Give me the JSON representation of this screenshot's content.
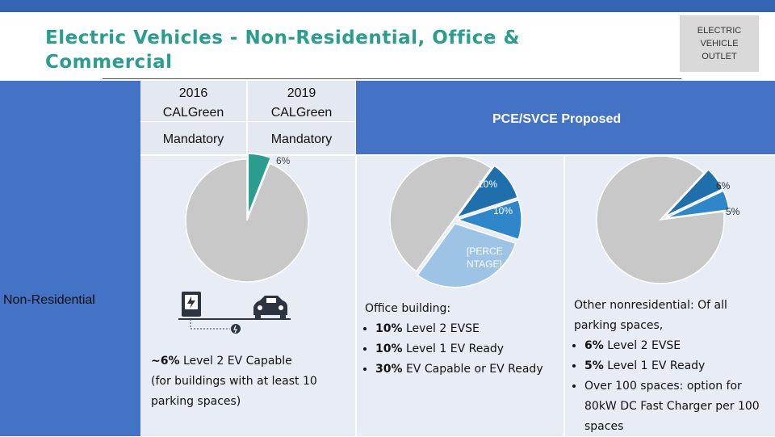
{
  "title": {
    "line1": "Electric Vehicles - Non-Residential, Office &",
    "line2": "Commercial"
  },
  "outlet_label": [
    "ELECTRIC",
    "VEHICLE",
    "OUTLET"
  ],
  "table": {
    "col2016": {
      "year": "2016",
      "code": "CALGreen",
      "status": "Mandatory"
    },
    "col2019": {
      "year": "2019",
      "code": "CALGreen",
      "status": "Mandatory"
    },
    "proposed": "PCE/SVCE Proposed",
    "row_label": "Non-Residential"
  },
  "colors": {
    "accent_blue": "#4472c4",
    "teal": "#2a9d8f",
    "grey": "#c8c8c8",
    "dark_blue": "#1f6fad",
    "light_blue": "#9dc3e6"
  },
  "chart_data": [
    {
      "type": "pie",
      "title": "",
      "slices": [
        {
          "label": "6%",
          "value": 6,
          "color": "#2a9d8f"
        },
        {
          "label": "",
          "value": 94,
          "color": "#c8c8c8"
        }
      ]
    },
    {
      "type": "pie",
      "title": "",
      "slices": [
        {
          "label": "10%",
          "value": 10,
          "color": "#1f6fad"
        },
        {
          "label": "10%",
          "value": 10,
          "color": "#2f86c8"
        },
        {
          "label": "[PERCENTAGE]",
          "value": 30,
          "color": "#9dc3e6"
        },
        {
          "label": "",
          "value": 50,
          "color": "#c8c8c8"
        }
      ]
    },
    {
      "type": "pie",
      "title": "",
      "slices": [
        {
          "label": "6%",
          "value": 6,
          "color": "#1f6fad"
        },
        {
          "label": "5%",
          "value": 5,
          "color": "#2f86c8"
        },
        {
          "label": "",
          "value": 89,
          "color": "#c8c8c8"
        }
      ]
    }
  ],
  "pie_labels": {
    "p1_a": "6%",
    "p2_a": "10%",
    "p2_b": "10%",
    "p2_c1": "[PERCE",
    "p2_c2": "NTAGE]",
    "p3_a": "6%",
    "p3_b": "5%"
  },
  "col2019_text": {
    "prefix": "~6%",
    "line1_rest": " Level 2 EV Capable",
    "line2": "(for buildings with at least 10",
    "line3": "parking spaces)"
  },
  "office_text": {
    "heading": "Office building:",
    "items": [
      {
        "bold": "10%",
        "rest": " Level 2 EVSE"
      },
      {
        "bold": "10%",
        "rest": " Level 1 EV Ready"
      },
      {
        "bold": "30%",
        "rest": " EV Capable or EV Ready"
      }
    ]
  },
  "other_text": {
    "heading1": "Other nonresidential: Of all",
    "heading2": "parking spaces,",
    "items": [
      {
        "bold": "6%",
        "rest": " Level 2 EVSE"
      },
      {
        "bold": "5%",
        "rest": " Level 1 EV Ready"
      },
      {
        "bold": "",
        "rest": "Over 100 spaces: option for 80kW DC Fast Charger per 100 spaces"
      }
    ]
  },
  "icons": [
    "ev-charger-icon",
    "car-icon",
    "outlet-icon"
  ]
}
